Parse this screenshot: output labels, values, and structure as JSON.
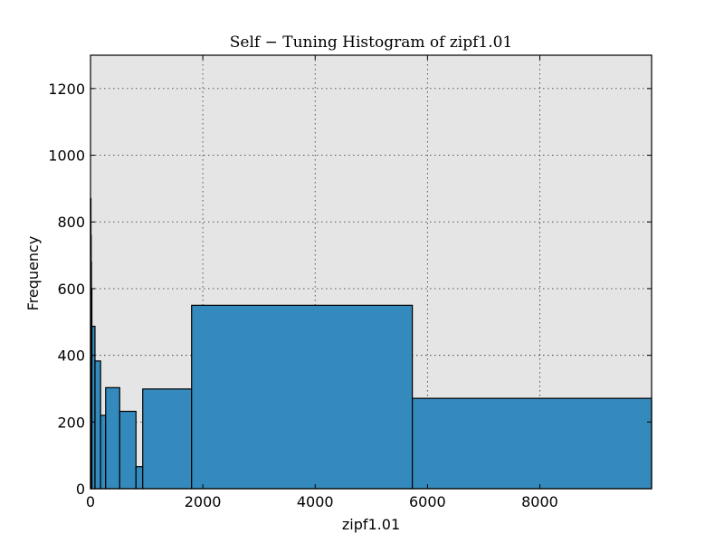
{
  "chart_data": {
    "type": "bar",
    "title": "Self − Tuning Histogram of zipf1.01",
    "xlabel": "zipf1.01",
    "ylabel": "Frequency",
    "xlim": [
      0,
      9990
    ],
    "ylim": [
      0,
      1300
    ],
    "xticks": [
      0,
      2000,
      4000,
      6000,
      8000
    ],
    "yticks": [
      0,
      200,
      400,
      600,
      800,
      1000,
      1200
    ],
    "grid": true,
    "background": "#e5e5e5",
    "bar_color": "#348abd",
    "bins": [
      {
        "x0": 0,
        "x1": 4,
        "value": 870
      },
      {
        "x0": 4,
        "x1": 9,
        "value": 760
      },
      {
        "x0": 9,
        "x1": 15,
        "value": 680
      },
      {
        "x0": 15,
        "x1": 25,
        "value": 600
      },
      {
        "x0": 25,
        "x1": 80,
        "value": 487
      },
      {
        "x0": 80,
        "x1": 180,
        "value": 383
      },
      {
        "x0": 180,
        "x1": 270,
        "value": 220
      },
      {
        "x0": 270,
        "x1": 520,
        "value": 303
      },
      {
        "x0": 520,
        "x1": 810,
        "value": 232
      },
      {
        "x0": 810,
        "x1": 930,
        "value": 66
      },
      {
        "x0": 930,
        "x1": 1800,
        "value": 299
      },
      {
        "x0": 1800,
        "x1": 5730,
        "value": 550
      },
      {
        "x0": 5730,
        "x1": 9990,
        "value": 271
      }
    ]
  }
}
